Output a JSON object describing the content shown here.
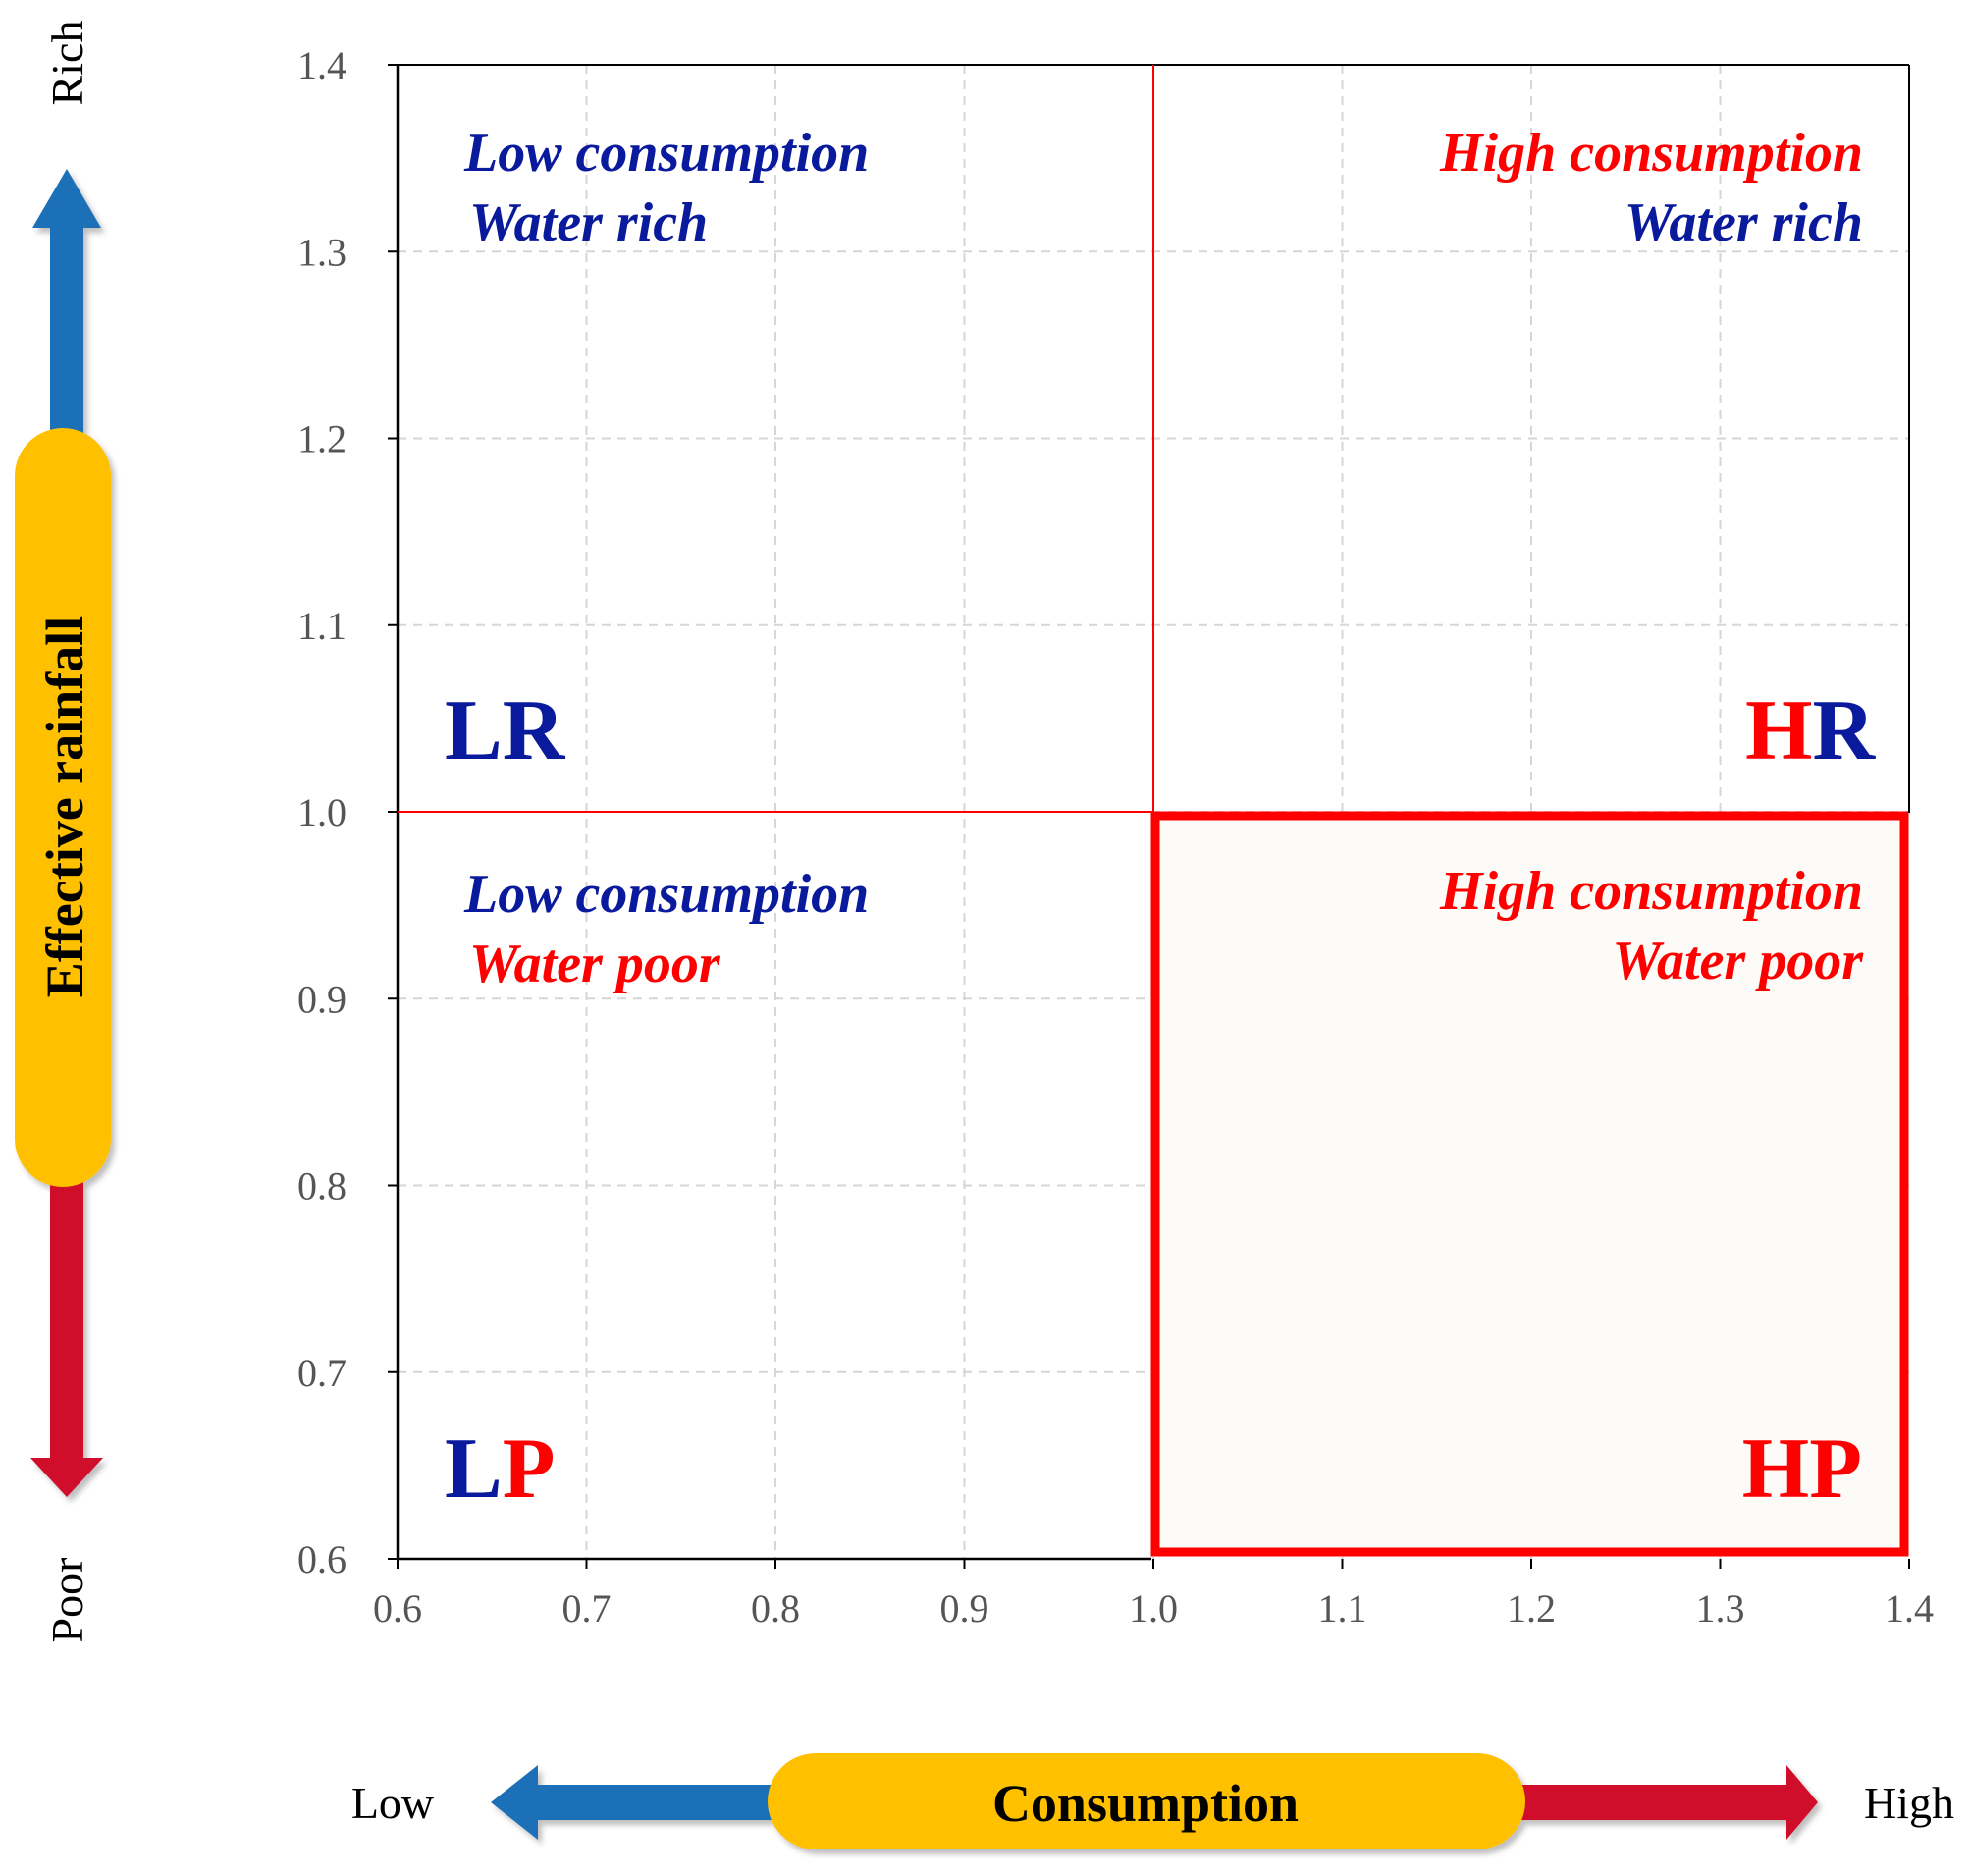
{
  "colors": {
    "blue": "#0a1a9c",
    "red": "#ff0000",
    "arrow_blue": "#1d6fb8",
    "arrow_red": "#d0102a",
    "pill": "#ffc000",
    "grid": "#d6d6d6",
    "shade": "#fdfbf7"
  },
  "chart_data": {
    "type": "quadrant",
    "x_axis": {
      "label": "Consumption",
      "low_label": "Low",
      "high_label": "High",
      "range": [
        0.6,
        1.4
      ],
      "ticks": [
        "0.6",
        "0.7",
        "0.8",
        "0.9",
        "1.0",
        "1.1",
        "1.2",
        "1.3",
        "1.4"
      ]
    },
    "y_axis": {
      "label": "Effective rainfall",
      "low_label": "Poor",
      "high_label": "Rich",
      "range": [
        0.6,
        1.4
      ],
      "ticks": [
        "0.6",
        "0.7",
        "0.8",
        "0.9",
        "1.0",
        "1.1",
        "1.2",
        "1.3",
        "1.4"
      ]
    },
    "threshold": {
      "x": 1.0,
      "y": 1.0
    },
    "highlighted_quadrant": "HP",
    "quadrants": {
      "LR": {
        "line1": "Low consumption",
        "line2": "Water rich",
        "code_a": "L",
        "code_b": "R"
      },
      "HR": {
        "line1": "High consumption",
        "line2": "Water rich",
        "code_a": "H",
        "code_b": "R"
      },
      "LP": {
        "line1": "Low consumption",
        "line2": "Water poor",
        "code_a": "L",
        "code_b": "P"
      },
      "HP": {
        "line1": "High consumption",
        "line2": "Water poor",
        "code_a": "H",
        "code_b": "P"
      }
    }
  }
}
